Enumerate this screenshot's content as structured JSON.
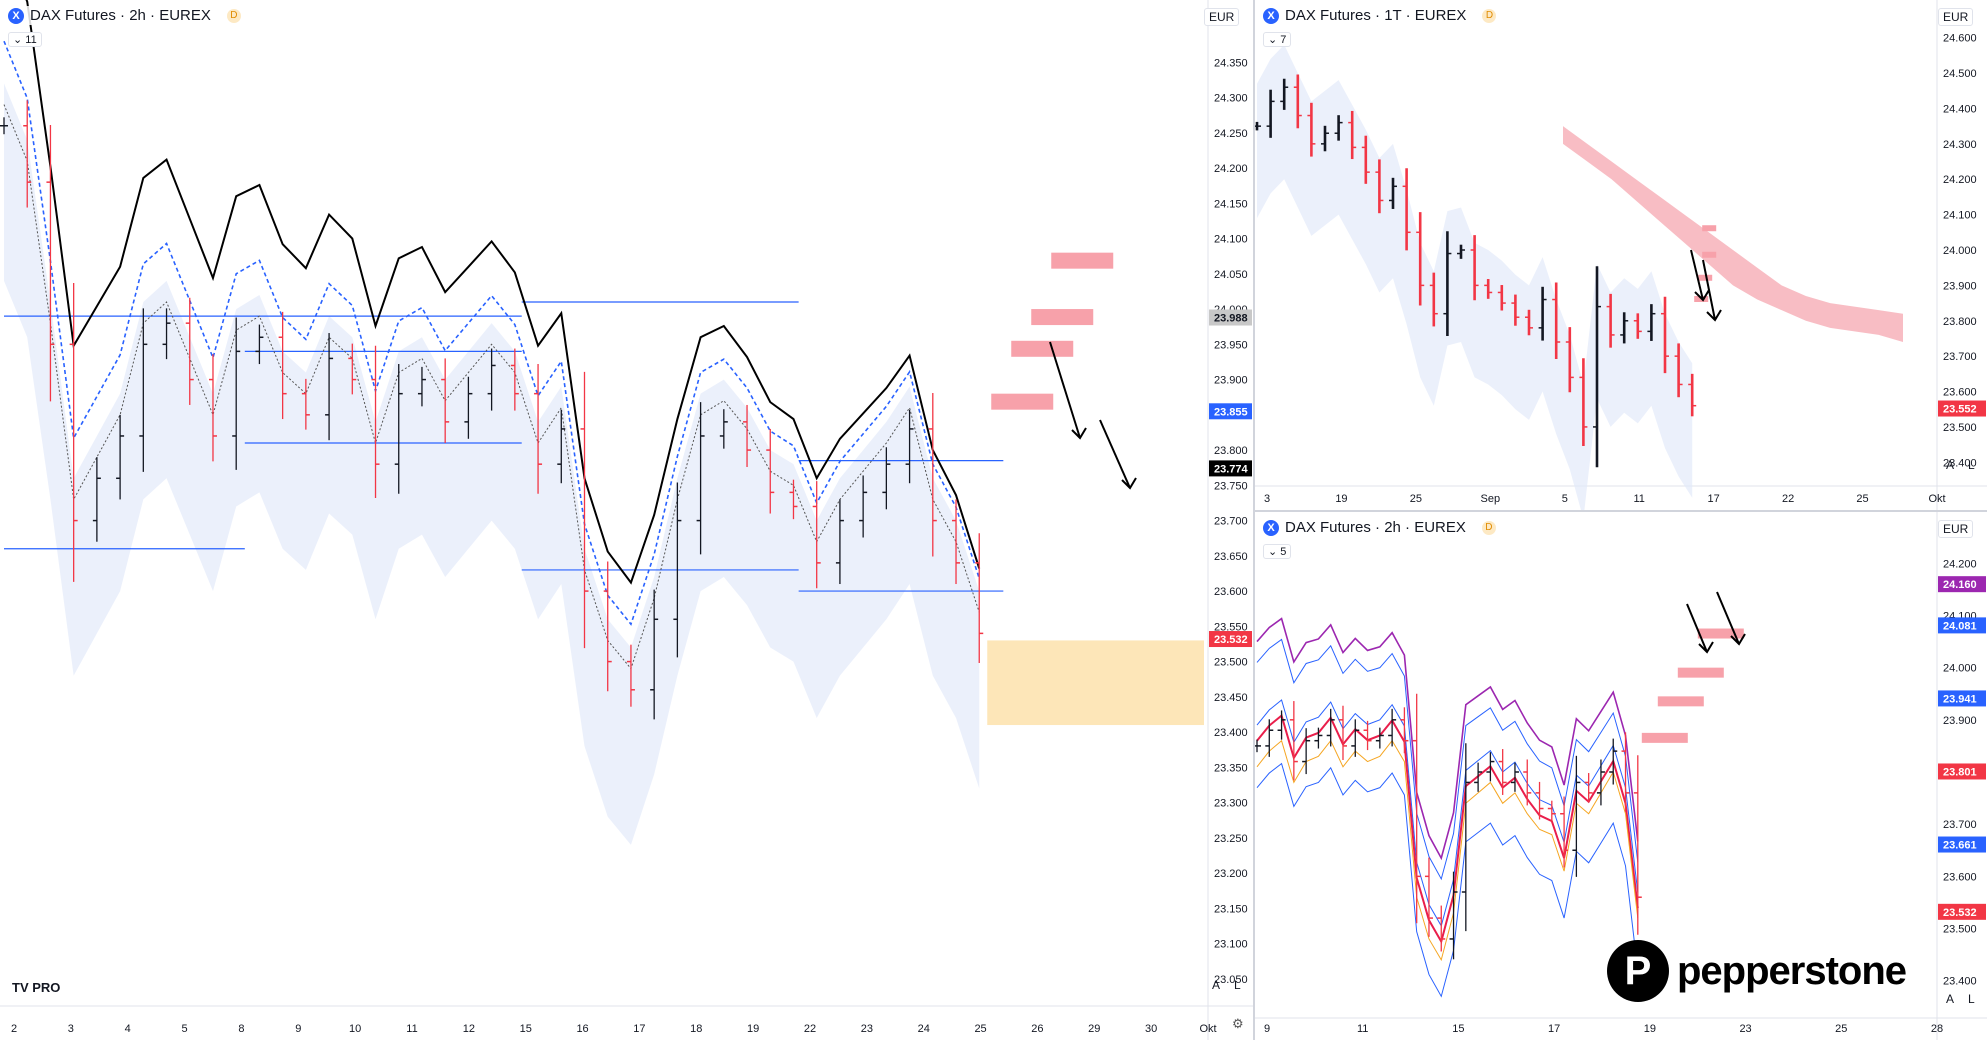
{
  "colors": {
    "up": "#131722",
    "down": "#f23645",
    "bbLine": "#2962ff",
    "bbFill": "#e3eafa",
    "resZone": "#f7a1aa",
    "supZone": "#fde6b8",
    "sma": "#000000",
    "ema": "#2962ff",
    "purple": "#9c27b0",
    "cyan": "#7fd4e8",
    "orange": "#f5a623",
    "crimson": "#e91e4b"
  },
  "left": {
    "header": {
      "title": "DAX Futures · 2h · EUREX",
      "badge": "D",
      "hide_count": "11",
      "currency": "EUR"
    },
    "chart_data": {
      "type": "candlestick",
      "title": "DAX Futures · 2h · EUREX",
      "xlabel": "",
      "ylabel": "",
      "ylim": [
        23020,
        24410
      ],
      "yticks": [
        "24.350",
        "24.300",
        "24.250",
        "24.200",
        "24.150",
        "24.100",
        "24.050",
        "24.000",
        "23.950",
        "23.900",
        "23.850",
        "23.800",
        "23.750",
        "23.700",
        "23.650",
        "23.600",
        "23.550",
        "23.500",
        "23.450",
        "23.400",
        "23.350",
        "23.300",
        "23.250",
        "23.200",
        "23.150",
        "23.100",
        "23.050"
      ],
      "x_labels": [
        "2",
        "3",
        "4",
        "5",
        "8",
        "9",
        "10",
        "11",
        "12",
        "15",
        "16",
        "17",
        "18",
        "19",
        "22",
        "23",
        "24",
        "25",
        "26",
        "29",
        "30",
        "Okt"
      ],
      "price_labels": [
        {
          "text": "23.988",
          "value": 23988,
          "bg": "#c8c8c8",
          "fg": "#131722"
        },
        {
          "text": "23.855",
          "value": 23855,
          "bg": "#2962ff",
          "fg": "#ffffff"
        },
        {
          "text": "23.774",
          "value": 23774,
          "bg": "#000000",
          "fg": "#ffffff"
        },
        {
          "text": "23.532",
          "value": 23532,
          "bg": "#f23645",
          "fg": "#ffffff"
        }
      ],
      "close_path": [
        24260,
        24180,
        23950,
        23700,
        23760,
        23820,
        23950,
        23980,
        23900,
        23820,
        23940,
        23960,
        23880,
        23850,
        23930,
        23900,
        23780,
        23880,
        23900,
        23840,
        23880,
        23920,
        23880,
        23780,
        23830,
        23600,
        23500,
        23460,
        23560,
        23700,
        23820,
        23840,
        23800,
        23740,
        23720,
        23640,
        23700,
        23740,
        23780,
        23830,
        23700,
        23640,
        23540
      ],
      "resistance_zones": [
        [
          24060,
          24080
        ],
        [
          23980,
          24000
        ],
        [
          23935,
          23955
        ],
        [
          23860,
          23880
        ]
      ],
      "support_zone": [
        23410,
        23530
      ],
      "levels": [
        {
          "y": 23990,
          "x0": 0.0,
          "x1": 0.43
        },
        {
          "y": 23940,
          "x0": 0.2,
          "x1": 0.43
        },
        {
          "y": 23810,
          "x0": 0.2,
          "x1": 0.43
        },
        {
          "y": 23660,
          "x0": 0.0,
          "x1": 0.2
        },
        {
          "y": 24010,
          "x0": 0.43,
          "x1": 0.66
        },
        {
          "y": 23630,
          "x0": 0.43,
          "x1": 0.66
        },
        {
          "y": 23785,
          "x0": 0.66,
          "x1": 0.83
        },
        {
          "y": 23600,
          "x0": 0.66,
          "x1": 0.83
        }
      ]
    }
  },
  "topRight": {
    "header": {
      "title": "DAX Futures · 1T · EUREX",
      "badge": "D",
      "hide_count": "7",
      "currency": "EUR"
    },
    "chart_data": {
      "type": "ohlc",
      "title": "DAX Futures · 1T · EUREX",
      "xlabel": "",
      "ylabel": "",
      "ylim": [
        23350,
        24650
      ],
      "yticks": [
        "24.600",
        "24.500",
        "24.400",
        "24.300",
        "24.200",
        "24.100",
        "24.000",
        "23.900",
        "23.800",
        "23.700",
        "23.600",
        "23.500",
        "23.400"
      ],
      "x_labels": [
        "3",
        "19",
        "25",
        "Sep",
        "5",
        "11",
        "17",
        "22",
        "25",
        "Okt"
      ],
      "price_labels": [
        {
          "text": "23.552",
          "value": 23552,
          "bg": "#f23645",
          "fg": "#ffffff"
        }
      ],
      "close_path": [
        24350,
        24420,
        24460,
        24380,
        24300,
        24330,
        24360,
        24290,
        24220,
        24140,
        24180,
        24050,
        23900,
        23820,
        23990,
        24000,
        23900,
        23880,
        23850,
        23810,
        23780,
        23860,
        23740,
        23640,
        23500,
        23840,
        23760,
        23800,
        23770,
        23820,
        23700,
        23620,
        23560
      ],
      "cloud_top": [
        24350,
        24300,
        24250,
        24200,
        24150,
        24100,
        24050,
        24000,
        23950,
        23900,
        23870,
        23850,
        23840,
        23830,
        23820
      ],
      "cloud_bot": [
        24300,
        24250,
        24200,
        24140,
        24080,
        24020,
        23960,
        23900,
        23860,
        23830,
        23800,
        23780,
        23770,
        23760,
        23740
      ],
      "resistance_zones": [
        [
          24060,
          24070
        ],
        [
          23985,
          23995
        ],
        [
          23920,
          23930
        ],
        [
          23860,
          23870
        ]
      ]
    }
  },
  "bottomRight": {
    "header": {
      "title": "DAX Futures · 2h · EUREX",
      "badge": "D",
      "hide_count": "5",
      "currency": "EUR"
    },
    "chart_data": {
      "type": "ohlc",
      "title": "DAX Futures · 2h · EUREX",
      "xlabel": "",
      "ylabel": "",
      "ylim": [
        23340,
        24260
      ],
      "yticks": [
        "24.200",
        "24.100",
        "24.000",
        "23.900",
        "23.800",
        "23.700",
        "23.600",
        "23.500",
        "23.400"
      ],
      "x_labels": [
        "9",
        "11",
        "15",
        "17",
        "19",
        "23",
        "25",
        "28"
      ],
      "price_labels": [
        {
          "text": "24.160",
          "value": 24160,
          "bg": "#9c27b0",
          "fg": "#ffffff"
        },
        {
          "text": "24.081",
          "value": 24081,
          "bg": "#2962ff",
          "fg": "#ffffff"
        },
        {
          "text": "23.941",
          "value": 23941,
          "bg": "#2962ff",
          "fg": "#ffffff"
        },
        {
          "text": "23.801",
          "value": 23801,
          "bg": "#f23645",
          "fg": "#ffffff"
        },
        {
          "text": "23.661",
          "value": 23661,
          "bg": "#2962ff",
          "fg": "#ffffff"
        },
        {
          "text": "23.532",
          "value": 23532,
          "bg": "#f23645",
          "fg": "#ffffff"
        }
      ],
      "close_path": [
        23850,
        23880,
        23900,
        23820,
        23860,
        23870,
        23900,
        23850,
        23880,
        23860,
        23870,
        23900,
        23860,
        23600,
        23520,
        23480,
        23570,
        23780,
        23800,
        23820,
        23780,
        23800,
        23760,
        23730,
        23720,
        23650,
        23780,
        23760,
        23800,
        23840,
        23760,
        23560
      ],
      "resistance_zones": [
        [
          24060,
          24075
        ],
        [
          23985,
          24000
        ],
        [
          23930,
          23945
        ],
        [
          23860,
          23875
        ]
      ]
    }
  },
  "watermark": {
    "brand": "pepperstone",
    "mark": "P",
    "tv": "TV PRO"
  }
}
